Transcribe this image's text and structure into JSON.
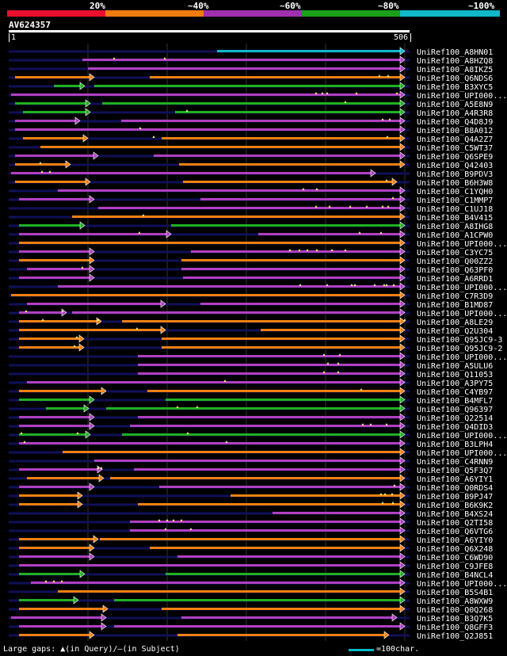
{
  "legend": {
    "labels": [
      "20%",
      "~40%",
      "~60%",
      "~80%",
      "~100%"
    ],
    "colors": [
      "#e8102e",
      "#f07c10",
      "#a030b0",
      "#1aa01a",
      "#10b8c8"
    ]
  },
  "query": {
    "title": "AV624357",
    "start": "1",
    "end": "506"
  },
  "colors": {
    "cyan": "#10b8c8",
    "purple": "#b040c0",
    "orange": "#f08010",
    "green": "#20b020",
    "navy": "#101058",
    "triangle": "#ffff80"
  },
  "hits": [
    {
      "id": "UniRef100_A8HN01",
      "c": "cyan",
      "s": [
        [
          263,
          500
        ]
      ],
      "m": []
    },
    {
      "id": "UniRef100_A8HZQ8",
      "c": "purple",
      "s": [
        [
          93,
          500
        ]
      ],
      "m": [
        133,
        197
      ]
    },
    {
      "id": "UniRef100_A8IKZ5",
      "c": "purple",
      "s": [
        [
          100,
          500
        ]
      ],
      "m": []
    },
    {
      "id": "UniRef100_Q6NDS6",
      "c": "orange",
      "s": [
        [
          8,
          108
        ],
        [
          178,
          500
        ]
      ],
      "m": [
        468,
        479
      ]
    },
    {
      "id": "UniRef100_B3XYC5",
      "c": "green",
      "s": [
        [
          57,
          96
        ],
        [
          108,
          500
        ]
      ],
      "m": []
    },
    {
      "id": "UniRef100_UPI000...",
      "c": "purple",
      "s": [
        [
          3,
          500
        ]
      ],
      "m": [
        388,
        396,
        402,
        439,
        490
      ]
    },
    {
      "id": "UniRef100_A5E8N9",
      "c": "green",
      "s": [
        [
          8,
          103
        ],
        [
          118,
          500
        ]
      ],
      "m": [
        425
      ]
    },
    {
      "id": "UniRef100_A4R3R8",
      "c": "green",
      "s": [
        [
          18,
          103
        ],
        [
          210,
          500
        ]
      ],
      "m": [
        225
      ]
    },
    {
      "id": "UniRef100_Q4D8J9",
      "c": "purple",
      "s": [
        [
          8,
          90
        ],
        [
          142,
          500
        ]
      ],
      "m": [
        472,
        481
      ]
    },
    {
      "id": "UniRef100_B8A012",
      "c": "purple",
      "s": [
        [
          8,
          500
        ]
      ],
      "m": [
        166
      ]
    },
    {
      "id": "UniRef100_Q4A2Z7",
      "c": "orange",
      "s": [
        [
          18,
          100
        ],
        [
          193,
          500
        ]
      ],
      "m": [
        183,
        478
      ]
    },
    {
      "id": "UniRef100_C5WT37",
      "c": "orange",
      "s": [
        [
          40,
          500
        ]
      ],
      "m": []
    },
    {
      "id": "UniRef100_Q6SPE9",
      "c": "purple",
      "s": [
        [
          8,
          113
        ],
        [
          183,
          500
        ]
      ],
      "m": []
    },
    {
      "id": "UniRef100_Q42403",
      "c": "orange",
      "s": [
        [
          8,
          78
        ],
        [
          215,
          500
        ]
      ],
      "m": [
        40
      ]
    },
    {
      "id": "UniRef100_B9PDV3",
      "c": "purple",
      "s": [
        [
          3,
          463
        ]
      ],
      "m": [
        42,
        52
      ]
    },
    {
      "id": "UniRef100_B6H3W8",
      "c": "orange",
      "s": [
        [
          8,
          103
        ],
        [
          220,
          490
        ]
      ],
      "m": [
        477
      ]
    },
    {
      "id": "UniRef100_C1YQH0",
      "c": "purple",
      "s": [
        [
          62,
          500
        ]
      ],
      "m": [
        372,
        389
      ]
    },
    {
      "id": "UniRef100_C1MMP7",
      "c": "purple",
      "s": [
        [
          13,
          108
        ],
        [
          242,
          500
        ]
      ],
      "m": [
        485
      ]
    },
    {
      "id": "UniRef100_C1UJ18",
      "c": "purple",
      "s": [
        [
          113,
          500
        ]
      ],
      "m": [
        388,
        405,
        431,
        452,
        472,
        479
      ]
    },
    {
      "id": "UniRef100_B4V415",
      "c": "orange",
      "s": [
        [
          80,
          500
        ]
      ],
      "m": [
        170
      ]
    },
    {
      "id": "UniRef100_A8IHG8",
      "c": "green",
      "s": [
        [
          13,
          96
        ],
        [
          205,
          500
        ]
      ],
      "m": []
    },
    {
      "id": "UniRef100_A1CPW0",
      "c": "purple",
      "s": [
        [
          13,
          205
        ],
        [
          315,
          500
        ]
      ],
      "m": [
        165,
        443,
        470
      ]
    },
    {
      "id": "UniRef100_UPI000...",
      "c": "orange",
      "s": [
        [
          13,
          500
        ]
      ],
      "m": []
    },
    {
      "id": "UniRef100_C3YC75",
      "c": "purple",
      "s": [
        [
          13,
          108
        ],
        [
          230,
          500
        ]
      ],
      "m": [
        355,
        367,
        377,
        389,
        408,
        425
      ]
    },
    {
      "id": "UniRef100_Q00ZZ2",
      "c": "orange",
      "s": [
        [
          13,
          108
        ],
        [
          218,
          500
        ]
      ],
      "m": []
    },
    {
      "id": "UniRef100_Q63PF0",
      "c": "purple",
      "s": [
        [
          23,
          108
        ],
        [
          218,
          500
        ]
      ],
      "m": [
        93
      ]
    },
    {
      "id": "UniRef100_A6RRD1",
      "c": "purple",
      "s": [
        [
          13,
          108
        ],
        [
          220,
          500
        ]
      ],
      "m": []
    },
    {
      "id": "UniRef100_UPI000...",
      "c": "purple",
      "s": [
        [
          62,
          500
        ]
      ],
      "m": [
        368,
        402,
        433,
        437,
        462,
        474,
        477,
        486
      ]
    },
    {
      "id": "UniRef100_C7R3D9",
      "c": "orange",
      "s": [
        [
          3,
          500
        ]
      ],
      "m": []
    },
    {
      "id": "UniRef100_B1MD87",
      "c": "purple",
      "s": [
        [
          23,
          198
        ],
        [
          242,
          500
        ]
      ],
      "m": []
    },
    {
      "id": "UniRef100_UPI000...",
      "c": "purple",
      "s": [
        [
          13,
          73
        ],
        [
          80,
          500
        ]
      ],
      "m": [
        22,
        68
      ]
    },
    {
      "id": "UniRef100_A8LE29",
      "c": "orange",
      "s": [
        [
          13,
          117
        ],
        [
          143,
          500
        ]
      ],
      "m": [
        43,
        113,
        500
      ]
    },
    {
      "id": "UniRef100_Q2U304",
      "c": "orange",
      "s": [
        [
          13,
          198
        ],
        [
          318,
          500
        ]
      ],
      "m": [
        162
      ]
    },
    {
      "id": "UniRef100_Q95JC9-3",
      "c": "orange",
      "s": [
        [
          13,
          95
        ],
        [
          193,
          500
        ]
      ],
      "m": [
        86
      ]
    },
    {
      "id": "UniRef100_Q95JC9-2",
      "c": "orange",
      "s": [
        [
          13,
          95
        ],
        [
          193,
          500
        ]
      ],
      "m": [
        83
      ]
    },
    {
      "id": "UniRef100_UPI000...",
      "c": "purple",
      "s": [
        [
          163,
          500
        ]
      ],
      "m": [
        398,
        418
      ]
    },
    {
      "id": "UniRef100_A5ULU6",
      "c": "purple",
      "s": [
        [
          163,
          500
        ]
      ],
      "m": [
        403,
        416
      ]
    },
    {
      "id": "UniRef100_Q11053",
      "c": "purple",
      "s": [
        [
          163,
          500
        ]
      ],
      "m": [
        398,
        416
      ]
    },
    {
      "id": "UniRef100_A3PY75",
      "c": "purple",
      "s": [
        [
          23,
          500
        ]
      ],
      "m": [
        273
      ]
    },
    {
      "id": "UniRef100_C4YB97",
      "c": "orange",
      "s": [
        [
          13,
          123
        ],
        [
          175,
          500
        ]
      ],
      "m": [
        445
      ]
    },
    {
      "id": "UniRef100_B4MFL7",
      "c": "green",
      "s": [
        [
          13,
          108
        ],
        [
          198,
          500
        ]
      ],
      "m": []
    },
    {
      "id": "UniRef100_Q96397",
      "c": "green",
      "s": [
        [
          47,
          101
        ],
        [
          123,
          500
        ]
      ],
      "m": [
        213,
        238
      ]
    },
    {
      "id": "UniRef100_Q22514",
      "c": "purple",
      "s": [
        [
          13,
          108
        ],
        [
          163,
          500
        ]
      ],
      "m": []
    },
    {
      "id": "UniRef100_Q4DID3",
      "c": "purple",
      "s": [
        [
          13,
          108
        ],
        [
          153,
          500
        ]
      ],
      "m": [
        447,
        457,
        477
      ]
    },
    {
      "id": "UniRef100_UPI000...",
      "c": "green",
      "s": [
        [
          13,
          103
        ],
        [
          143,
          500
        ]
      ],
      "m": [
        16,
        87,
        226
      ]
    },
    {
      "id": "UniRef100_B3LPH4",
      "c": "purple",
      "s": [
        [
          13,
          500
        ]
      ],
      "m": [
        20,
        275
      ]
    },
    {
      "id": "UniRef100_UPI000...",
      "c": "orange",
      "s": [
        [
          68,
          500
        ]
      ],
      "m": []
    },
    {
      "id": "UniRef100_C4RNN9",
      "c": "purple",
      "s": [
        [
          108,
          500
        ]
      ],
      "m": []
    },
    {
      "id": "UniRef100_Q5F3Q7",
      "c": "purple",
      "s": [
        [
          13,
          118
        ],
        [
          158,
          500
        ]
      ],
      "m": [
        113,
        117
      ]
    },
    {
      "id": "UniRef100_A6YIY1",
      "c": "orange",
      "s": [
        [
          23,
          120
        ],
        [
          128,
          500
        ]
      ],
      "m": []
    },
    {
      "id": "UniRef100_Q0RDS4",
      "c": "purple",
      "s": [
        [
          13,
          108
        ],
        [
          190,
          500
        ]
      ],
      "m": [
        487
      ]
    },
    {
      "id": "UniRef100_B9PJ47",
      "c": "orange",
      "s": [
        [
          13,
          93
        ],
        [
          280,
          500
        ]
      ],
      "m": [
        470,
        475,
        484
      ]
    },
    {
      "id": "UniRef100_B6K9K2",
      "c": "orange",
      "s": [
        [
          13,
          93
        ],
        [
          163,
          500
        ]
      ],
      "m": [
        472,
        485
      ]
    },
    {
      "id": "UniRef100_B4XS24",
      "c": "purple",
      "s": [
        [
          333,
          500
        ]
      ],
      "m": []
    },
    {
      "id": "UniRef100_Q2TI58",
      "c": "purple",
      "s": [
        [
          153,
          500
        ]
      ],
      "m": [
        190,
        200,
        208,
        218
      ]
    },
    {
      "id": "UniRef100_Q6VTG6",
      "c": "purple",
      "s": [
        [
          153,
          500
        ]
      ],
      "m": [
        198,
        230
      ]
    },
    {
      "id": "UniRef100_A6YIY0",
      "c": "orange",
      "s": [
        [
          13,
          113
        ],
        [
          115,
          500
        ]
      ],
      "m": []
    },
    {
      "id": "UniRef100_Q6X248",
      "c": "orange",
      "s": [
        [
          13,
          108
        ],
        [
          178,
          500
        ]
      ],
      "m": []
    },
    {
      "id": "UniRef100_C6WD90",
      "c": "purple",
      "s": [
        [
          13,
          108
        ],
        [
          213,
          500
        ]
      ],
      "m": []
    },
    {
      "id": "UniRef100_C9JFE8",
      "c": "purple",
      "s": [
        [
          13,
          500
        ]
      ],
      "m": []
    },
    {
      "id": "UniRef100_B4NCL4",
      "c": "green",
      "s": [
        [
          13,
          96
        ],
        [
          198,
          500
        ]
      ],
      "m": []
    },
    {
      "id": "UniRef100_UPI000...",
      "c": "purple",
      "s": [
        [
          28,
          500
        ]
      ],
      "m": [
        47,
        57,
        67
      ]
    },
    {
      "id": "UniRef100_B5S4B1",
      "c": "orange",
      "s": [
        [
          62,
          500
        ]
      ],
      "m": []
    },
    {
      "id": "UniRef100_A8WXW9",
      "c": "green",
      "s": [
        [
          13,
          88
        ],
        [
          133,
          500
        ]
      ],
      "m": []
    },
    {
      "id": "UniRef100_Q0Q268",
      "c": "orange",
      "s": [
        [
          13,
          125
        ],
        [
          193,
          500
        ]
      ],
      "m": []
    },
    {
      "id": "UniRef100_B3Q7K5",
      "c": "purple",
      "s": [
        [
          3,
          123
        ],
        [
          218,
          490
        ]
      ],
      "m": []
    },
    {
      "id": "UniRef100_Q8GFF3",
      "c": "purple",
      "s": [
        [
          13,
          123
        ],
        [
          133,
          500
        ]
      ],
      "m": []
    },
    {
      "id": "UniRef100_Q2J851",
      "c": "orange",
      "s": [
        [
          13,
          108
        ],
        [
          213,
          480
        ]
      ],
      "m": []
    }
  ],
  "footer": {
    "text": "Large gaps: ▲(in Query)/—(in Subject)",
    "scale_label": "=100char."
  }
}
